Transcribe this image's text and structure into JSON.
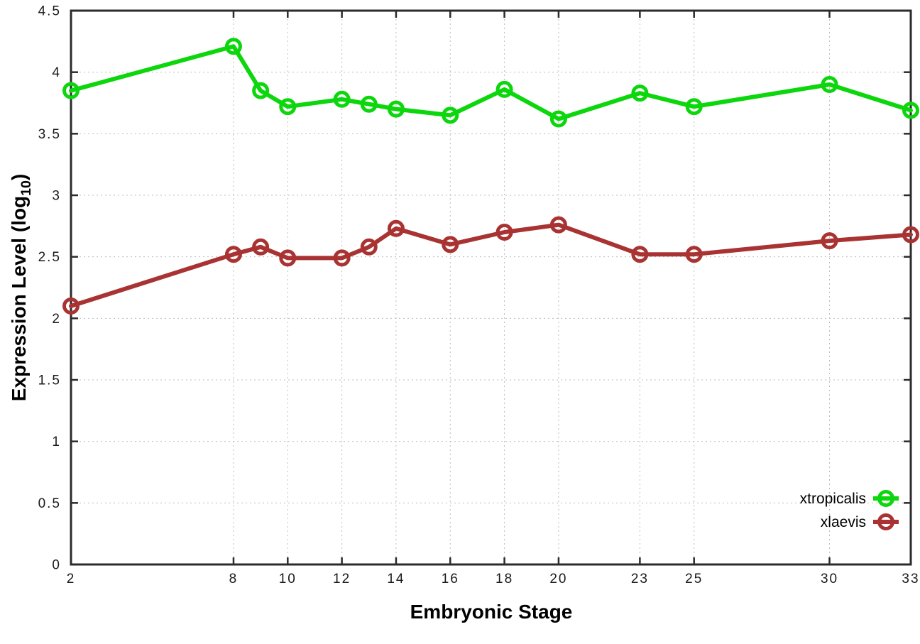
{
  "figure": {
    "background": "#ffffff",
    "xlabel": "Embryonic Stage",
    "ylabel_prefix": "Expression Level (log",
    "ylabel_sub": "10",
    "ylabel_suffix": ")"
  },
  "chart_data": {
    "type": "line",
    "title": "",
    "xlabel": "Embryonic Stage",
    "ylabel": "Expression Level (log10)",
    "x": [
      2,
      8,
      9,
      10,
      12,
      13,
      14,
      16,
      18,
      20,
      23,
      25,
      30,
      33
    ],
    "xlim": [
      2,
      33
    ],
    "ylim": [
      0,
      4.5
    ],
    "xticks": [
      2,
      8,
      10,
      12,
      14,
      16,
      18,
      20,
      23,
      25,
      30,
      33
    ],
    "xtick_labels": [
      "2",
      "8",
      "10",
      "12",
      "14",
      "16",
      "18",
      "20",
      "23",
      "25",
      "30",
      "33"
    ],
    "yticks": [
      0,
      0.5,
      1,
      1.5,
      2,
      2.5,
      3,
      3.5,
      4,
      4.5
    ],
    "ytick_labels": [
      "0",
      "0.5",
      "1",
      "1.5",
      "2",
      "2.5",
      "3",
      "3.5",
      "4",
      "4.5"
    ],
    "grid": true,
    "legend_position": "bottom-right",
    "marker": "open-circle",
    "series": [
      {
        "name": "xtropicalis",
        "color": "#0cd60c",
        "values": [
          3.85,
          4.21,
          3.85,
          3.72,
          3.78,
          3.74,
          3.7,
          3.65,
          3.86,
          3.62,
          3.83,
          3.72,
          3.9,
          3.69
        ]
      },
      {
        "name": "xlaevis",
        "color": "#a93333",
        "values": [
          2.1,
          2.52,
          2.58,
          2.49,
          2.49,
          2.58,
          2.73,
          2.6,
          2.7,
          2.76,
          2.52,
          2.52,
          2.63,
          2.68
        ]
      }
    ],
    "style": {
      "grid_color": "#bcbcbc",
      "axis_color": "#2b2b2b",
      "tick_label_color": "#1a1a1a",
      "line_width": 6,
      "marker_radius": 9.5,
      "marker_stroke_width": 5
    }
  }
}
